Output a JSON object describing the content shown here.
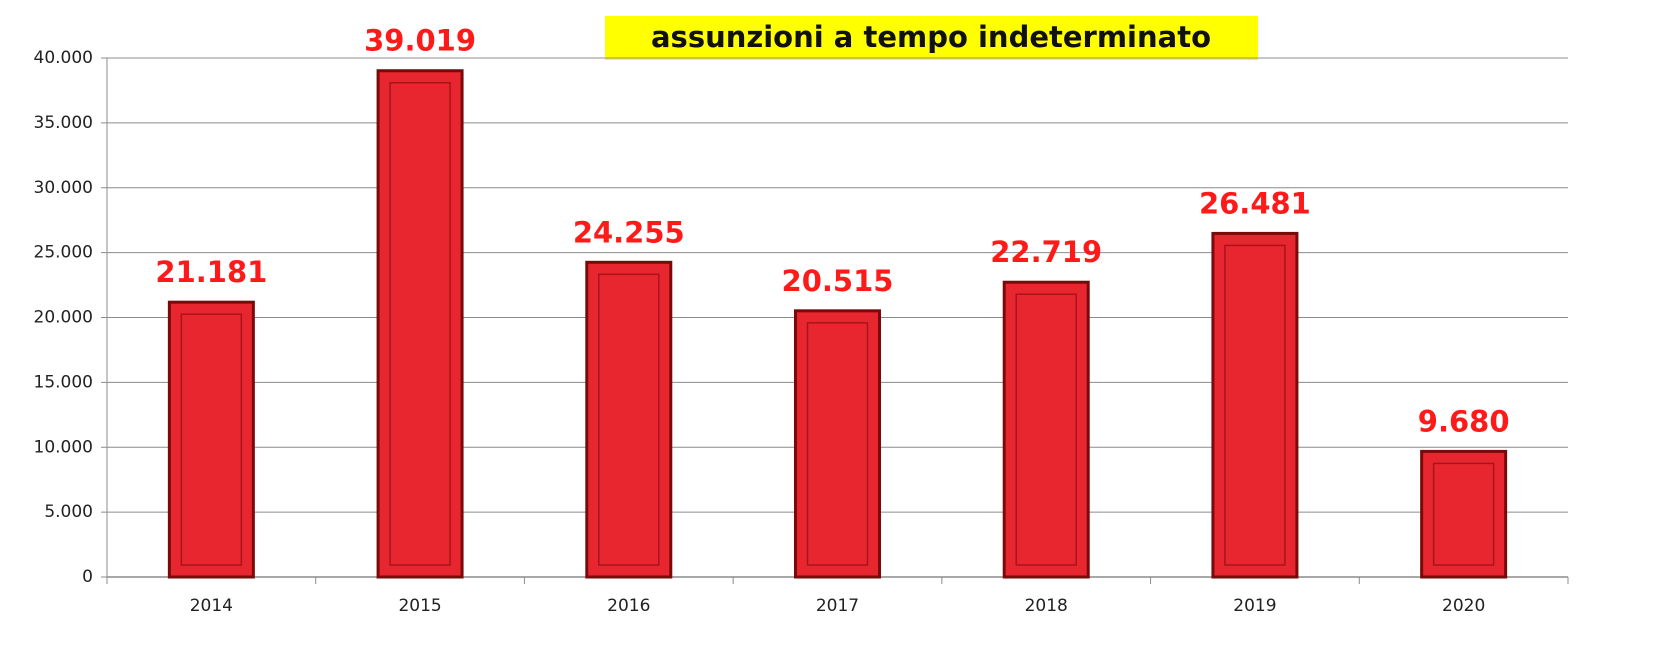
{
  "chart_data": {
    "type": "bar",
    "title": "assunzioni a tempo indeterminato",
    "categories": [
      "2014",
      "2015",
      "2016",
      "2017",
      "2018",
      "2019",
      "2020"
    ],
    "values": [
      21181,
      39019,
      24255,
      20515,
      22719,
      26481,
      9680
    ],
    "value_labels": [
      "21.181",
      "39.019",
      "24.255",
      "20.515",
      "22.719",
      "26.481",
      "9.680"
    ],
    "color": "#e8262f",
    "ylim": [
      0,
      40000
    ],
    "yticks": [
      0,
      {
        "value": 5000,
        "label": "5.000"
      },
      {
        "value": 10000,
        "label": "10.000"
      },
      {
        "value": 15000,
        "label": "15.000"
      },
      {
        "value": 20000,
        "label": "20.000"
      },
      {
        "value": 25000,
        "label": "25.000"
      },
      {
        "value": 30000,
        "label": "30.000"
      },
      {
        "value": 35000,
        "label": "35.000"
      },
      {
        "value": 40000,
        "label": "40.000"
      }
    ],
    "grid": true
  }
}
